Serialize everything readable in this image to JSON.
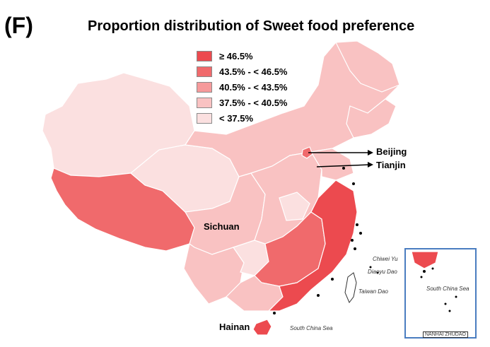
{
  "panel_letter": "(F)",
  "title": "Proportion distribution of Sweet food preference",
  "colors": {
    "c5": "#ec4a4f",
    "c4": "#f06a6c",
    "c3": "#f69a9b",
    "c2": "#f9c2c2",
    "c1": "#fbe0e0",
    "border": "#ffffff",
    "pointer": "#000000"
  },
  "legend": [
    {
      "label": "≥ 46.5%",
      "color": "#ec4a4f"
    },
    {
      "label": "43.5% - < 46.5%",
      "color": "#f06a6c"
    },
    {
      "label": "40.5% - < 43.5%",
      "color": "#f69a9b"
    },
    {
      "label": "37.5% - < 40.5%",
      "color": "#f9c2c2"
    },
    {
      "label": "< 37.5%",
      "color": "#fbe0e0"
    }
  ],
  "labels": {
    "beijing": "Beijing",
    "tianjin": "Tianjin",
    "sichuan": "Sichuan",
    "hainan": "Hainan",
    "chiwei_yu": "Chiwei Yu",
    "diaoyu_dao": "Diaoyu Dao",
    "taiwan_dao": "Taiwan Dao",
    "south_china_sea": "South China Sea",
    "inset_south_china_sea": "South China Sea",
    "inset_caption": "NANHAI ZHUDAO"
  }
}
